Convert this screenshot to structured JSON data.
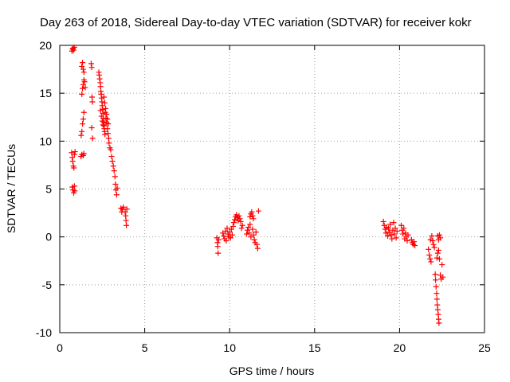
{
  "chart_data": {
    "type": "scatter",
    "title": "Day 263 of 2018, Sidereal Day-to-day VTEC variation (SDTVAR) for receiver kokr",
    "xlabel": "GPS time / hours",
    "ylabel": "SDTVAR / TECUs",
    "xlim": [
      0,
      25
    ],
    "ylim": [
      -10,
      20
    ],
    "xticks": [
      "0",
      "5",
      "10",
      "15",
      "20",
      "25"
    ],
    "yticks": [
      "-10",
      "-5",
      "0",
      "5",
      "10",
      "15",
      "20"
    ],
    "grid": true,
    "marker": "plus",
    "color": "#ff0000",
    "series": [
      {
        "name": "SDTVAR",
        "points": [
          [
            0.72,
            19.4
          ],
          [
            0.75,
            19.6
          ],
          [
            0.78,
            19.7
          ],
          [
            0.82,
            19.5
          ],
          [
            0.85,
            19.8
          ],
          [
            0.7,
            8.8
          ],
          [
            0.73,
            8.3
          ],
          [
            0.76,
            7.9
          ],
          [
            0.8,
            7.4
          ],
          [
            0.83,
            7.2
          ],
          [
            0.86,
            8.6
          ],
          [
            0.9,
            8.9
          ],
          [
            0.74,
            5.2
          ],
          [
            0.78,
            4.9
          ],
          [
            0.82,
            4.6
          ],
          [
            0.86,
            5.3
          ],
          [
            0.88,
            4.8
          ],
          [
            1.25,
            8.4
          ],
          [
            1.3,
            8.6
          ],
          [
            1.38,
            8.5
          ],
          [
            1.42,
            8.7
          ],
          [
            1.26,
            10.6
          ],
          [
            1.3,
            11.0
          ],
          [
            1.34,
            11.8
          ],
          [
            1.38,
            12.3
          ],
          [
            1.42,
            13.0
          ],
          [
            1.3,
            14.9
          ],
          [
            1.34,
            15.5
          ],
          [
            1.38,
            15.9
          ],
          [
            1.42,
            16.4
          ],
          [
            1.3,
            17.8
          ],
          [
            1.34,
            18.2
          ],
          [
            1.38,
            17.5
          ],
          [
            1.42,
            17.2
          ],
          [
            1.46,
            16.2
          ],
          [
            1.5,
            15.6
          ],
          [
            1.85,
            18.1
          ],
          [
            1.88,
            17.7
          ],
          [
            1.9,
            14.6
          ],
          [
            1.92,
            14.1
          ],
          [
            1.88,
            11.4
          ],
          [
            1.93,
            10.3
          ],
          [
            2.3,
            17.2
          ],
          [
            2.32,
            16.9
          ],
          [
            2.35,
            16.5
          ],
          [
            2.38,
            16.1
          ],
          [
            2.4,
            15.7
          ],
          [
            2.42,
            15.2
          ],
          [
            2.44,
            14.9
          ],
          [
            2.46,
            14.5
          ],
          [
            2.48,
            14.1
          ],
          [
            2.5,
            13.7
          ],
          [
            2.52,
            13.3
          ],
          [
            2.54,
            12.9
          ],
          [
            2.56,
            12.4
          ],
          [
            2.58,
            12.0
          ],
          [
            2.6,
            11.6
          ],
          [
            2.62,
            11.3
          ],
          [
            2.64,
            11.0
          ],
          [
            2.66,
            10.7
          ],
          [
            2.4,
            13.2
          ],
          [
            2.45,
            12.6
          ],
          [
            2.5,
            12.1
          ],
          [
            2.55,
            11.7
          ],
          [
            2.6,
            14.6
          ],
          [
            2.65,
            14.0
          ],
          [
            2.7,
            13.4
          ],
          [
            2.75,
            12.8
          ],
          [
            2.8,
            12.3
          ],
          [
            2.85,
            11.8
          ],
          [
            2.68,
            13.0
          ],
          [
            2.72,
            12.4
          ],
          [
            2.76,
            11.9
          ],
          [
            2.8,
            11.3
          ],
          [
            2.84,
            10.8
          ],
          [
            2.88,
            10.3
          ],
          [
            2.9,
            9.8
          ],
          [
            2.95,
            9.3
          ],
          [
            3.0,
            9.1
          ],
          [
            3.05,
            8.4
          ],
          [
            3.1,
            7.9
          ],
          [
            3.15,
            7.4
          ],
          [
            3.2,
            6.9
          ],
          [
            3.25,
            6.3
          ],
          [
            3.28,
            5.5
          ],
          [
            3.3,
            4.9
          ],
          [
            3.35,
            4.4
          ],
          [
            3.38,
            5.1
          ],
          [
            3.6,
            3.0
          ],
          [
            3.65,
            2.6
          ],
          [
            3.7,
            2.9
          ],
          [
            3.75,
            3.1
          ],
          [
            3.85,
            2.6
          ],
          [
            3.88,
            2.2
          ],
          [
            3.9,
            1.7
          ],
          [
            3.92,
            1.2
          ],
          [
            3.95,
            2.9
          ],
          [
            9.25,
            -0.1
          ],
          [
            9.28,
            -0.6
          ],
          [
            9.3,
            -1.0
          ],
          [
            9.32,
            -1.7
          ],
          [
            9.35,
            -0.3
          ],
          [
            9.6,
            0.4
          ],
          [
            9.65,
            0.1
          ],
          [
            9.7,
            -0.2
          ],
          [
            9.75,
            0.6
          ],
          [
            9.8,
            -0.4
          ],
          [
            9.85,
            0.9
          ],
          [
            9.9,
            0.3
          ],
          [
            9.95,
            0.0
          ],
          [
            10.0,
            0.5
          ],
          [
            10.05,
            -0.1
          ],
          [
            10.1,
            0.8
          ],
          [
            10.15,
            0.2
          ],
          [
            10.2,
            1.1
          ],
          [
            10.25,
            1.5
          ],
          [
            10.3,
            1.8
          ],
          [
            10.35,
            2.1
          ],
          [
            10.4,
            2.3
          ],
          [
            10.45,
            2.0
          ],
          [
            10.5,
            1.7
          ],
          [
            10.55,
            2.2
          ],
          [
            10.6,
            1.9
          ],
          [
            10.65,
            1.6
          ],
          [
            10.7,
            0.9
          ],
          [
            10.75,
            1.2
          ],
          [
            11.0,
            0.3
          ],
          [
            11.05,
            0.7
          ],
          [
            11.1,
            1.0
          ],
          [
            11.15,
            0.4
          ],
          [
            11.2,
            1.3
          ],
          [
            11.25,
            0.0
          ],
          [
            11.2,
            2.1
          ],
          [
            11.25,
            2.4
          ],
          [
            11.3,
            2.6
          ],
          [
            11.35,
            2.2
          ],
          [
            11.4,
            1.9
          ],
          [
            11.35,
            0.8
          ],
          [
            11.4,
            0.2
          ],
          [
            11.45,
            -0.3
          ],
          [
            11.5,
            -0.6
          ],
          [
            11.55,
            0.5
          ],
          [
            11.6,
            -0.8
          ],
          [
            11.65,
            -1.2
          ],
          [
            11.7,
            2.7
          ],
          [
            19.05,
            1.6
          ],
          [
            19.1,
            1.2
          ],
          [
            19.15,
            0.8
          ],
          [
            19.2,
            0.4
          ],
          [
            19.25,
            1.0
          ],
          [
            19.3,
            0.1
          ],
          [
            19.35,
            0.9
          ],
          [
            19.4,
            0.5
          ],
          [
            19.45,
            1.3
          ],
          [
            19.5,
            0.2
          ],
          [
            19.55,
            -0.2
          ],
          [
            19.6,
            0.7
          ],
          [
            19.65,
            1.5
          ],
          [
            19.7,
            0.3
          ],
          [
            19.75,
            0.9
          ],
          [
            19.8,
            -0.1
          ],
          [
            19.85,
            0.6
          ],
          [
            20.1,
            1.2
          ],
          [
            20.15,
            0.7
          ],
          [
            20.2,
            0.3
          ],
          [
            20.25,
            0.9
          ],
          [
            20.3,
            -0.2
          ],
          [
            20.35,
            0.4
          ],
          [
            20.4,
            0.0
          ],
          [
            20.45,
            -0.4
          ],
          [
            20.5,
            0.2
          ],
          [
            20.7,
            -0.3
          ],
          [
            20.75,
            -0.6
          ],
          [
            20.8,
            -0.8
          ],
          [
            20.85,
            -0.5
          ],
          [
            20.9,
            -0.9
          ],
          [
            21.7,
            -1.3
          ],
          [
            21.75,
            -1.9
          ],
          [
            21.8,
            -2.3
          ],
          [
            21.85,
            -2.6
          ],
          [
            21.82,
            -0.3
          ],
          [
            21.9,
            0.1
          ],
          [
            21.95,
            -0.4
          ],
          [
            22.0,
            -0.8
          ],
          [
            22.05,
            -1.1
          ],
          [
            22.1,
            -3.9
          ],
          [
            22.12,
            -4.5
          ],
          [
            22.15,
            -5.2
          ],
          [
            22.18,
            -5.9
          ],
          [
            22.2,
            -6.5
          ],
          [
            22.22,
            -7.1
          ],
          [
            22.25,
            -7.6
          ],
          [
            22.28,
            -8.1
          ],
          [
            22.3,
            -8.6
          ],
          [
            22.32,
            -9.0
          ],
          [
            22.2,
            -2.2
          ],
          [
            22.25,
            -1.7
          ],
          [
            22.3,
            -1.4
          ],
          [
            22.35,
            -2.3
          ],
          [
            22.25,
            0.1
          ],
          [
            22.3,
            -0.3
          ],
          [
            22.35,
            0.2
          ],
          [
            22.4,
            -0.1
          ],
          [
            22.5,
            -2.9
          ],
          [
            22.55,
            -4.2
          ],
          [
            22.45,
            -4.4
          ],
          [
            22.4,
            -4.0
          ]
        ]
      }
    ]
  }
}
